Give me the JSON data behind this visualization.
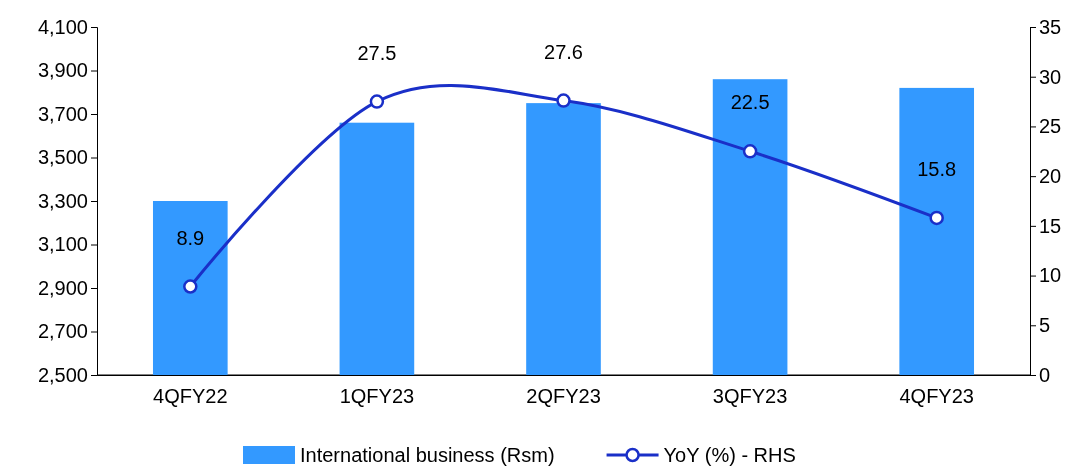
{
  "chart_data": {
    "type": "bar",
    "categories": [
      "4QFY22",
      "1QFY23",
      "2QFY23",
      "3QFY23",
      "4QFY23"
    ],
    "series": [
      {
        "name": "International business (Rsm)",
        "color": "#3399ff",
        "values": [
          3300,
          3660,
          3750,
          3860,
          3820
        ]
      },
      {
        "name": "YoY (%) - RHS",
        "type": "line",
        "axis": "y2",
        "color": "#1a2fc8",
        "values": [
          8.9,
          27.5,
          27.6,
          22.5,
          15.8
        ],
        "marker": "circle",
        "value_labels": [
          "8.9",
          "27.5",
          "27.6",
          "22.5",
          "15.8"
        ]
      }
    ],
    "ylim": [
      2500,
      4100
    ],
    "yticks": [
      {
        "value": 2500,
        "label": "2,500"
      },
      {
        "value": 2700,
        "label": "2,700"
      },
      {
        "value": 2900,
        "label": "2,900"
      },
      {
        "value": 3100,
        "label": "3,100"
      },
      {
        "value": 3300,
        "label": "3,300"
      },
      {
        "value": 3500,
        "label": "3,500"
      },
      {
        "value": 3700,
        "label": "3,700"
      },
      {
        "value": 3900,
        "label": "3,900"
      },
      {
        "value": 4100,
        "label": "4,100"
      }
    ],
    "y2lim": [
      0,
      35
    ],
    "y2ticks": [
      0,
      5,
      10,
      15,
      20,
      25,
      30,
      35
    ],
    "grid": false,
    "legend": "bottom"
  }
}
